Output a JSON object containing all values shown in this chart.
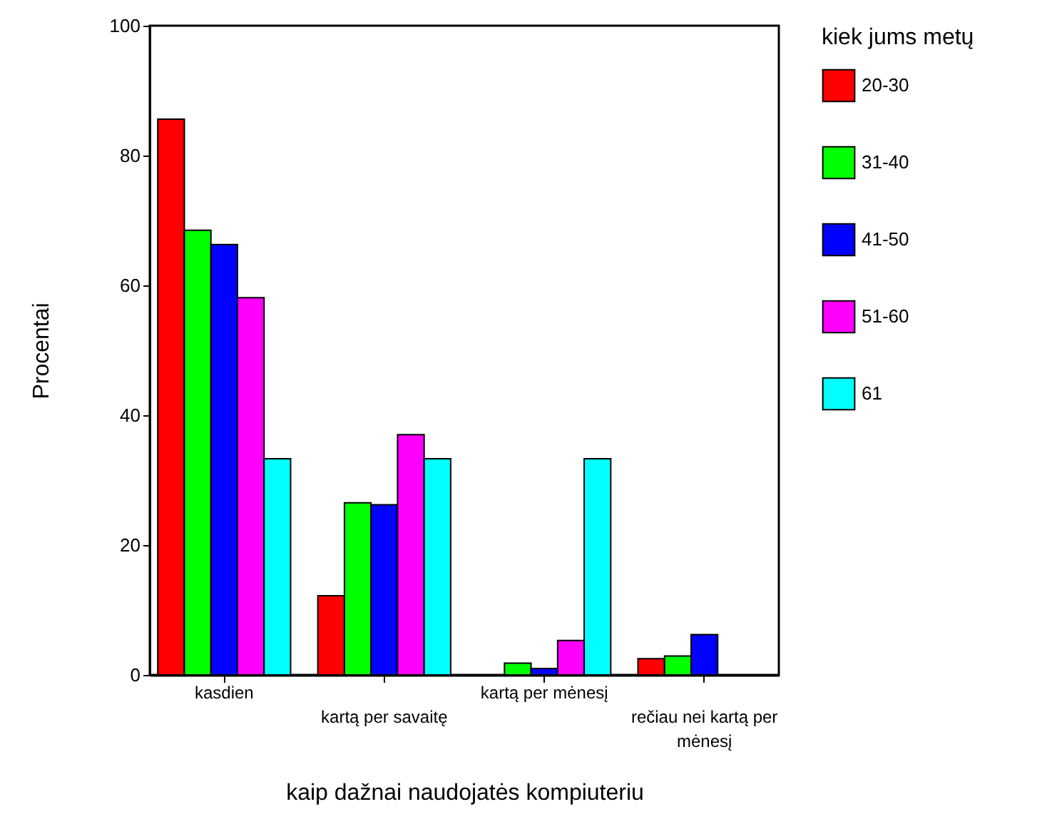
{
  "chart_data": {
    "type": "bar",
    "xlabel": "kaip dažnai naudojatės kompiuteriu",
    "ylabel": "Procentai",
    "legend_title": "kiek jums metų",
    "categories": [
      "kasdien",
      "kartą per savaitę",
      "kartą per mėnesį",
      "rečiau nei kartą per mėnesį"
    ],
    "series": [
      {
        "name": "20-30",
        "color": "#ff0000",
        "values": [
          85.6,
          12.2,
          null,
          2.5
        ]
      },
      {
        "name": "31-40",
        "color": "#00ff00",
        "values": [
          68.5,
          26.5,
          1.8,
          2.9
        ]
      },
      {
        "name": "41-50",
        "color": "#0000ff",
        "values": [
          66.3,
          26.2,
          1.0,
          6.2
        ]
      },
      {
        "name": "51-60",
        "color": "#ff00ff",
        "values": [
          58.1,
          37.0,
          5.3,
          null
        ]
      },
      {
        "name": "61",
        "color": "#00ffff",
        "values": [
          33.3,
          33.3,
          33.3,
          null
        ]
      }
    ],
    "ylim": [
      0,
      100
    ],
    "yticks": [
      0,
      20,
      40,
      60,
      80,
      100
    ],
    "grid": false,
    "legend": "right"
  }
}
